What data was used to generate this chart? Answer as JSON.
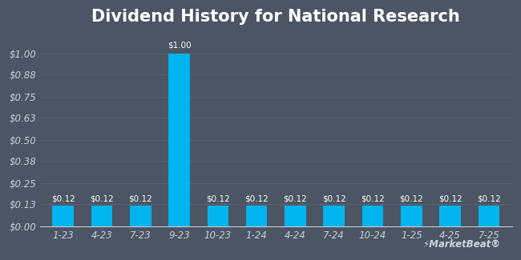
{
  "title": "Dividend History for National Research",
  "categories": [
    "1-23",
    "4-23",
    "7-23",
    "9-23",
    "10-23",
    "1-24",
    "4-24",
    "7-24",
    "10-24",
    "1-25",
    "4-25",
    "7-25"
  ],
  "values": [
    0.12,
    0.12,
    0.12,
    1.0,
    0.12,
    0.12,
    0.12,
    0.12,
    0.12,
    0.12,
    0.12,
    0.12
  ],
  "bar_color": "#00b4f0",
  "background_color": "#4b5563",
  "plot_bg_color": "#4b5563",
  "title_color": "#ffffff",
  "label_color": "#ffffff",
  "tick_color": "#c8cfd8",
  "grid_color": "#5d6675",
  "yticks": [
    0.0,
    0.13,
    0.25,
    0.38,
    0.5,
    0.63,
    0.75,
    0.88,
    1.0
  ],
  "ytick_labels": [
    "$0.00",
    "$0.13",
    "$0.25",
    "$0.38",
    "$0.50",
    "$0.63",
    "$0.75",
    "$0.88",
    "$1.00"
  ],
  "ylim": [
    0,
    1.12
  ],
  "bar_value_labels": [
    "$0.12",
    "$0.12",
    "$0.12",
    "$1.00",
    "$0.12",
    "$0.12",
    "$0.12",
    "$0.12",
    "$0.12",
    "$0.12",
    "$0.12",
    "$0.12"
  ],
  "watermark_text": "⚡MarketBeat®",
  "title_fontsize": 15,
  "tick_fontsize": 8.5,
  "bar_label_fontsize": 7.5
}
